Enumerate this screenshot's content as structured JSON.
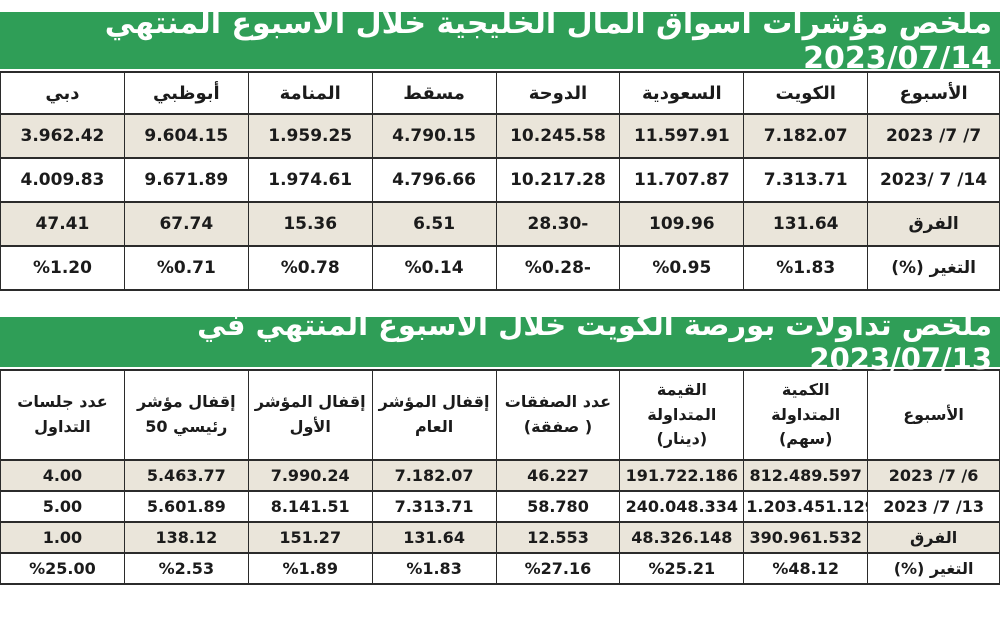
{
  "colors": {
    "banner_bg": "#2f9e57",
    "banner_text": "#ffffff",
    "row_alt_bg": "#eae5da",
    "row_bg": "#ffffff",
    "border": "#2b2b2b",
    "text": "#1b1b1b"
  },
  "table1": {
    "title": "ملخص مؤشرات أسواق المال الخليجية خلال الأسبوع المنتهي  2023/07/14",
    "columns": [
      "الأسبوع",
      "الكويت",
      "السعودية",
      "الدوحة",
      "مسقط",
      "المنامة",
      "أبوظبي",
      "دبي"
    ],
    "rows": [
      [
        "2023 /7 /7",
        "7.182.07",
        "11.597.91",
        "10.245.58",
        "4.790.15",
        "1.959.25",
        "9.604.15",
        "3.962.42"
      ],
      [
        "2023/ 7 /14",
        "7.313.71",
        "11.707.87",
        "10.217.28",
        "4.796.66",
        "1.974.61",
        "9.671.89",
        "4.009.83"
      ],
      [
        "الفرق",
        "131.64",
        "109.96",
        "28.30-",
        "6.51",
        "15.36",
        "67.74",
        "47.41"
      ],
      [
        "التغير (%)",
        "%1.83",
        "%0.95",
        "%0.28-",
        "%0.14",
        "%0.78",
        "%0.71",
        "%1.20"
      ]
    ]
  },
  "table2": {
    "title": "ملخص تداولات بورصة الكويت خلال الأسبوع المنتهي في 2023/07/13",
    "columns": [
      "الأسبوع",
      "الكمية المتداولة (سهم)",
      "القيمة المتداولة (دينار)",
      "عدد الصفقات ( صفقة)",
      "إقفال المؤشر العام",
      "إقفال المؤشر الأول",
      "إقفال مؤشر رئيسي 50",
      "عدد جلسات التداول"
    ],
    "rows": [
      [
        "2023 /7 /6",
        "812.489.597",
        "191.722.186",
        "46.227",
        "7.182.07",
        "7.990.24",
        "5.463.77",
        "4.00"
      ],
      [
        "2023 /7 /13",
        "1.203.451.129",
        "240.048.334",
        "58.780",
        "7.313.71",
        "8.141.51",
        "5.601.89",
        "5.00"
      ],
      [
        "الفرق",
        "390.961.532",
        "48.326.148",
        "12.553",
        "131.64",
        "151.27",
        "138.12",
        "1.00"
      ],
      [
        "التغير (%)",
        "%48.12",
        "%25.21",
        "%27.16",
        "%1.83",
        "%1.89",
        "%2.53",
        "%25.00"
      ]
    ]
  }
}
